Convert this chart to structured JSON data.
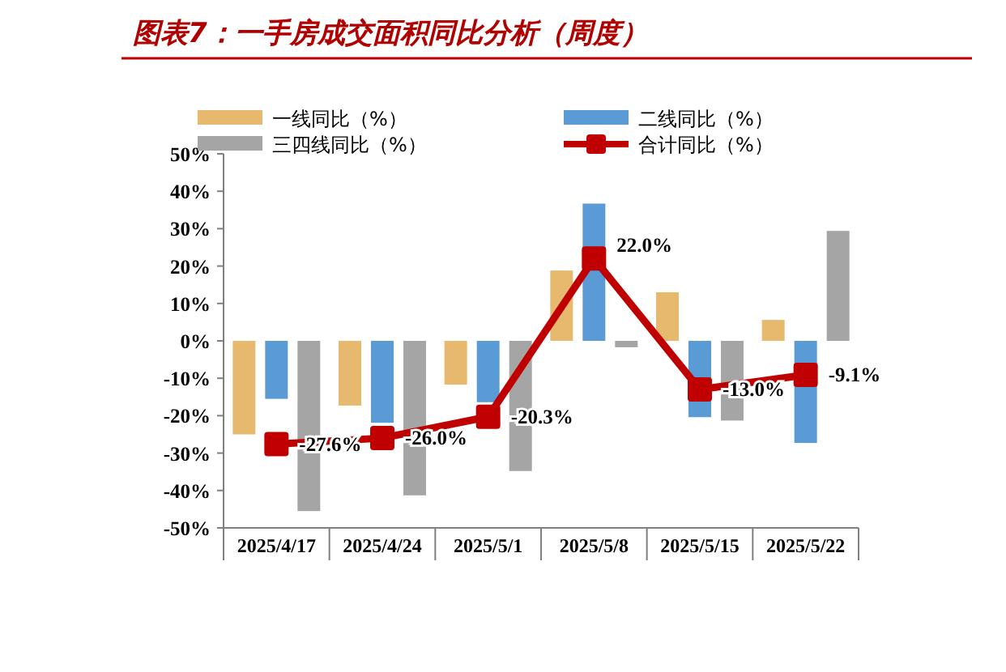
{
  "chart_data": {
    "type": "bar",
    "title": "图表7：一手房成交面积同比分析（周度）",
    "categories": [
      "2025/4/17",
      "2025/4/24",
      "2025/5/1",
      "2025/5/8",
      "2025/5/15",
      "2025/5/22"
    ],
    "series": [
      {
        "name": "一线同比（%）",
        "color": "#e6b96f",
        "values": [
          -25,
          -17.3,
          -11.7,
          18.8,
          13,
          5.6
        ]
      },
      {
        "name": "二线同比（%）",
        "color": "#5b9bd5",
        "values": [
          -15.5,
          -21.9,
          -16.4,
          36.7,
          -20.4,
          -27.3
        ]
      },
      {
        "name": "三四线同比（%）",
        "color": "#a5a5a5",
        "values": [
          -45.5,
          -41.3,
          -34.8,
          -1.7,
          -21.3,
          29.4
        ]
      },
      {
        "name": "合计同比（%）",
        "type": "line",
        "color": "#c00000",
        "marker": "square",
        "values": [
          -27.6,
          -26.0,
          -20.3,
          22.0,
          -13.0,
          -9.1
        ],
        "value_labels": [
          "-27.6%",
          "-26.0%",
          "-20.3%",
          "22.0%",
          "-13.0%",
          "-9.1%"
        ]
      }
    ],
    "ylim": [
      -50,
      50
    ],
    "yticks": [
      {
        "value": -50,
        "label": "-50%"
      },
      {
        "value": -40,
        "label": "-40%"
      },
      {
        "value": -30,
        "label": "-30%"
      },
      {
        "value": -20,
        "label": "-20%"
      },
      {
        "value": -10,
        "label": "-10%"
      },
      {
        "value": 0,
        "label": "0%"
      },
      {
        "value": 10,
        "label": "10%"
      },
      {
        "value": 20,
        "label": "20%"
      },
      {
        "value": 30,
        "label": "30%"
      },
      {
        "value": 40,
        "label": "40%"
      },
      {
        "value": 50,
        "label": "50%"
      }
    ],
    "legend": "top",
    "grid": false
  }
}
